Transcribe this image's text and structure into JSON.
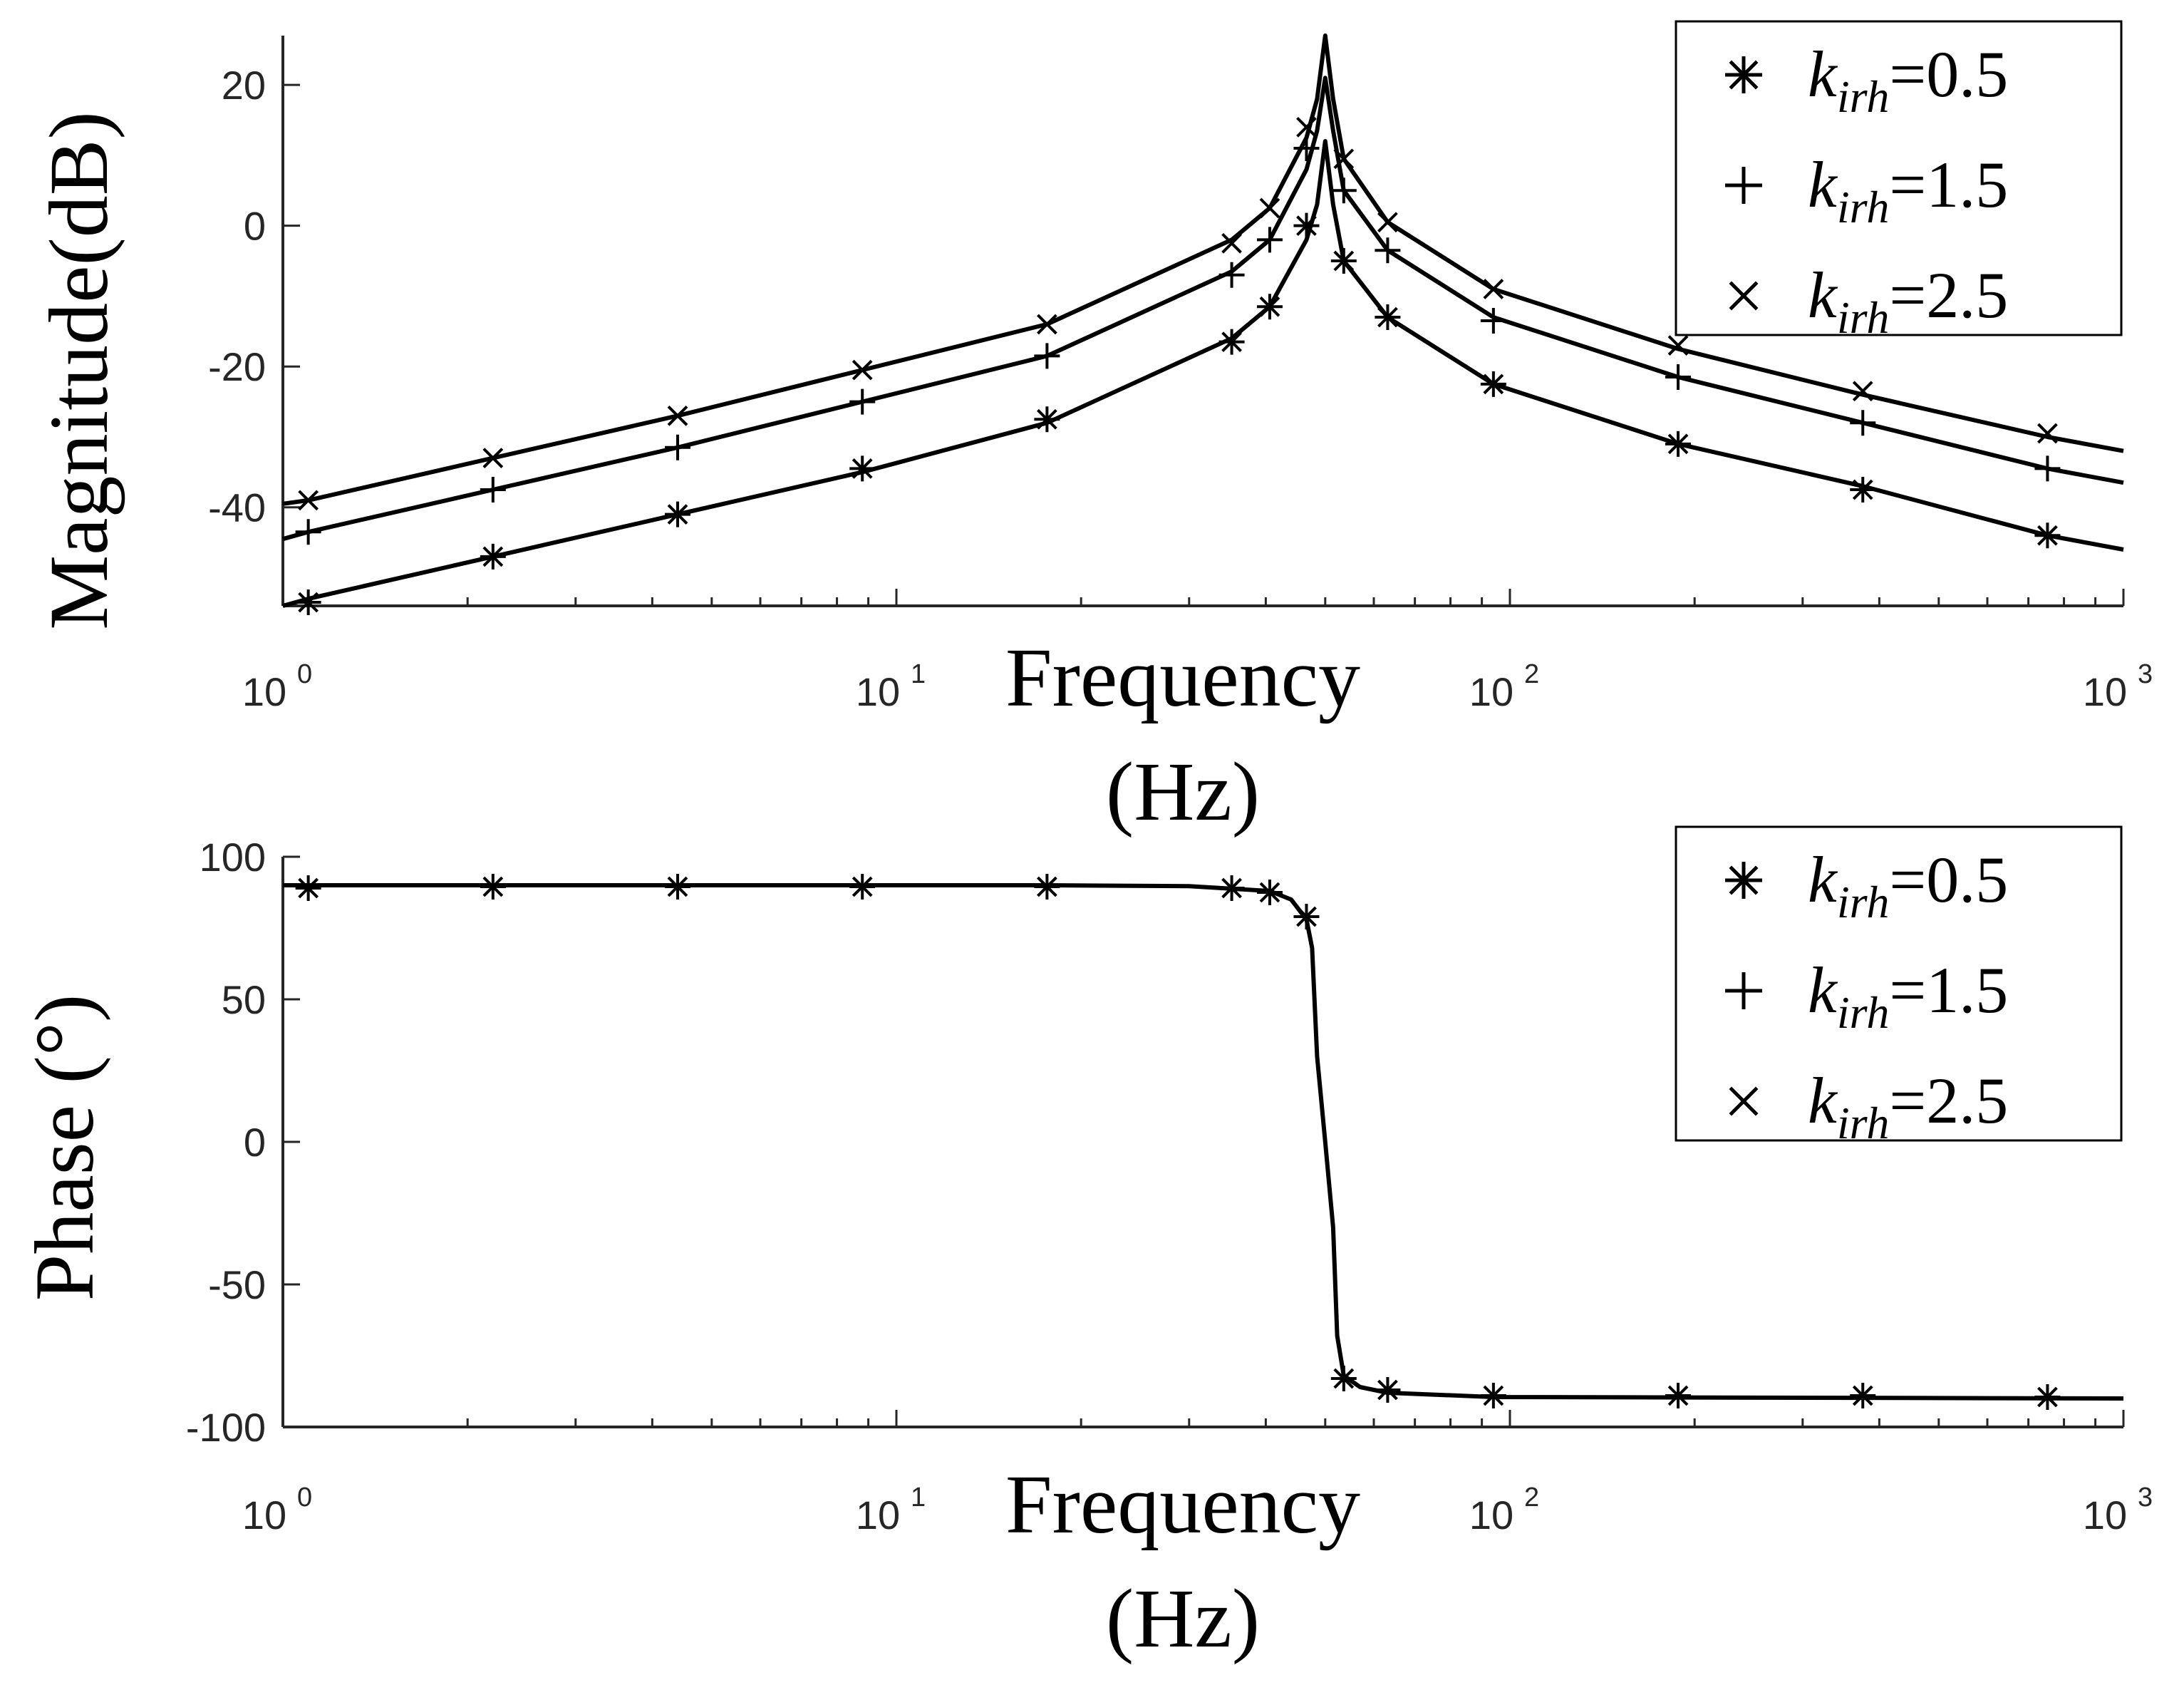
{
  "chart_data": [
    {
      "type": "line",
      "id": "magnitude",
      "xscale": "log",
      "xlim": [
        1,
        1000
      ],
      "ylim": [
        -54,
        27
      ],
      "yticks": [
        20,
        0,
        -20,
        -40
      ],
      "ytick_labels": [
        "20",
        "0",
        "-20",
        "-40"
      ],
      "xticks": [
        1,
        10,
        100,
        1000
      ],
      "xtick_labels": [
        {
          "base": "10",
          "exp": "0"
        },
        {
          "base": "10",
          "exp": "1"
        },
        {
          "base": "10",
          "exp": "2"
        },
        {
          "base": "10",
          "exp": "3"
        }
      ],
      "xlabel": "Frequency",
      "xlabel_unit": "(Hz)",
      "ylabel": "Magnitude(dB)",
      "legend_position": "top-right",
      "resonance_hz": 50,
      "series": [
        {
          "legend_symbol": "*",
          "legend_k": "k",
          "legend_sub": "irh",
          "legend_value": "=0.5",
          "marker": "asterisk",
          "points": [
            [
              1,
              -54
            ],
            [
              1.1,
              -53
            ],
            [
              2.2,
              -47
            ],
            [
              4.4,
              -41
            ],
            [
              8.8,
              -35
            ],
            [
              17.6,
              -28
            ],
            [
              35.2,
              -16
            ],
            [
              40.6,
              -11.5
            ],
            [
              46.6,
              -2
            ],
            [
              48.5,
              3
            ],
            [
              50,
              12
            ],
            [
              51.5,
              3
            ],
            [
              53.6,
              -5
            ],
            [
              63.2,
              -13
            ],
            [
              94,
              -22.5
            ],
            [
              188,
              -31
            ],
            [
              376,
              -37
            ],
            [
              752,
              -44
            ],
            [
              1000,
              -46
            ]
          ],
          "markers": [
            [
              1.1,
              -53.5
            ],
            [
              2.2,
              -47
            ],
            [
              4.4,
              -41
            ],
            [
              8.8,
              -34.5
            ],
            [
              17.6,
              -27.5
            ],
            [
              35.2,
              -16.5
            ],
            [
              40.6,
              -11.5
            ],
            [
              46.6,
              0
            ],
            [
              53.6,
              -5
            ],
            [
              63.2,
              -13
            ],
            [
              94,
              -22.5
            ],
            [
              188,
              -31
            ],
            [
              376,
              -37.5
            ],
            [
              752,
              -44
            ]
          ]
        },
        {
          "legend_symbol": "+",
          "legend_k": "k",
          "legend_sub": "irh",
          "legend_value": "=1.5",
          "marker": "plus",
          "points": [
            [
              1,
              -44.5
            ],
            [
              1.1,
              -43.5
            ],
            [
              2.2,
              -37.5
            ],
            [
              4.4,
              -31.5
            ],
            [
              8.8,
              -25
            ],
            [
              17.6,
              -18.5
            ],
            [
              35.2,
              -6.5
            ],
            [
              40.6,
              -2
            ],
            [
              46.6,
              8
            ],
            [
              48.5,
              13.5
            ],
            [
              50,
              21
            ],
            [
              51.5,
              13.5
            ],
            [
              53.6,
              5
            ],
            [
              63.2,
              -3.5
            ],
            [
              94,
              -13
            ],
            [
              188,
              -21.5
            ],
            [
              376,
              -28
            ],
            [
              752,
              -34.5
            ],
            [
              1000,
              -36.5
            ]
          ],
          "markers": [
            [
              1.1,
              -43.5
            ],
            [
              2.2,
              -37.5
            ],
            [
              4.4,
              -31.5
            ],
            [
              8.8,
              -25
            ],
            [
              17.6,
              -18.5
            ],
            [
              35.2,
              -7
            ],
            [
              40.6,
              -2
            ],
            [
              46.6,
              11
            ],
            [
              53.6,
              5
            ],
            [
              63.2,
              -3.5
            ],
            [
              94,
              -13.5
            ],
            [
              188,
              -21.5
            ],
            [
              376,
              -28
            ],
            [
              752,
              -34.5
            ]
          ]
        },
        {
          "legend_symbol": "×",
          "legend_k": "k",
          "legend_sub": "irh",
          "legend_value": "=2.5",
          "marker": "cross",
          "points": [
            [
              1,
              -39.5
            ],
            [
              1.1,
              -39
            ],
            [
              2.2,
              -33
            ],
            [
              4.4,
              -27
            ],
            [
              8.8,
              -20.5
            ],
            [
              17.6,
              -14
            ],
            [
              35.2,
              -2
            ],
            [
              40.6,
              2.5
            ],
            [
              46.6,
              12.5
            ],
            [
              48.5,
              18
            ],
            [
              50,
              27
            ],
            [
              51.5,
              18
            ],
            [
              53.6,
              9.5
            ],
            [
              63.2,
              0.5
            ],
            [
              94,
              -9
            ],
            [
              188,
              -17.5
            ],
            [
              376,
              -24
            ],
            [
              752,
              -30
            ],
            [
              1000,
              -32
            ]
          ],
          "markers": [
            [
              1.1,
              -39
            ],
            [
              2.2,
              -33
            ],
            [
              4.4,
              -27
            ],
            [
              8.8,
              -20.5
            ],
            [
              17.6,
              -14
            ],
            [
              35.2,
              -2.5
            ],
            [
              40.6,
              2.5
            ],
            [
              46.6,
              14
            ],
            [
              53.6,
              9.5
            ],
            [
              63.2,
              0.5
            ],
            [
              94,
              -9
            ],
            [
              188,
              -17
            ],
            [
              376,
              -23.5
            ],
            [
              752,
              -29.5
            ]
          ]
        }
      ]
    },
    {
      "type": "line",
      "id": "phase",
      "xscale": "log",
      "xlim": [
        1,
        1000
      ],
      "ylim": [
        -100,
        100
      ],
      "yticks": [
        100,
        50,
        0,
        -50,
        -100
      ],
      "ytick_labels": [
        "100",
        "50",
        "0",
        "-50",
        "-100"
      ],
      "xticks": [
        1,
        10,
        100,
        1000
      ],
      "xtick_labels": [
        {
          "base": "10",
          "exp": "0"
        },
        {
          "base": "10",
          "exp": "1"
        },
        {
          "base": "10",
          "exp": "2"
        },
        {
          "base": "10",
          "exp": "3"
        }
      ],
      "xlabel": "Frequency",
      "xlabel_unit": "(Hz)",
      "ylabel": "Phase (°)",
      "legend_position": "top-right",
      "series": [
        {
          "legend_symbol": "*",
          "legend_k": "k",
          "legend_sub": "irh",
          "legend_value": "=0.5",
          "marker": "asterisk",
          "points": [
            [
              1,
              90
            ],
            [
              8.8,
              90
            ],
            [
              17.6,
              90
            ],
            [
              30,
              89.7
            ],
            [
              40.6,
              88
            ],
            [
              44,
              85
            ],
            [
              46.6,
              78
            ],
            [
              47.6,
              68
            ],
            [
              48.5,
              30
            ],
            [
              50,
              0
            ],
            [
              51.5,
              -30
            ],
            [
              52.3,
              -68
            ],
            [
              53.6,
              -82
            ],
            [
              57,
              -86
            ],
            [
              63.2,
              -88
            ],
            [
              94,
              -89.5
            ],
            [
              1000,
              -90
            ]
          ],
          "markers": [
            [
              1.1,
              89
            ],
            [
              2.2,
              89.5
            ],
            [
              4.4,
              89.5
            ],
            [
              8.8,
              89.5
            ],
            [
              17.6,
              89.5
            ],
            [
              35.2,
              89
            ],
            [
              40.6,
              87.5
            ],
            [
              46.6,
              79
            ],
            [
              53.6,
              -83
            ],
            [
              63.2,
              -87
            ],
            [
              94,
              -89
            ],
            [
              188,
              -89
            ],
            [
              376,
              -89
            ],
            [
              752,
              -89.5
            ]
          ]
        },
        {
          "legend_symbol": "+",
          "legend_k": "k",
          "legend_sub": "irh",
          "legend_value": "=1.5",
          "marker": "plus",
          "points": [],
          "markers": []
        },
        {
          "legend_symbol": "×",
          "legend_k": "k",
          "legend_sub": "irh",
          "legend_value": "=2.5",
          "marker": "cross",
          "points": [],
          "markers": []
        }
      ]
    }
  ]
}
